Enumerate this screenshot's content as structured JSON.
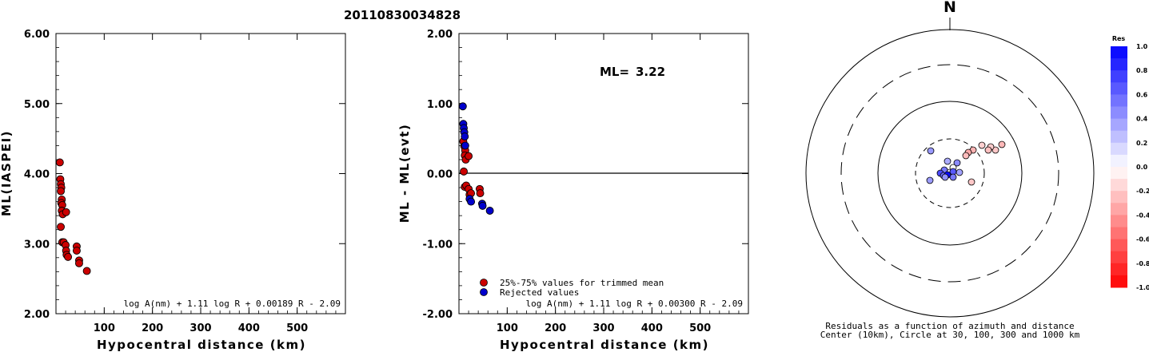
{
  "event_id": "20110830034828",
  "chart_data": [
    {
      "type": "scatter",
      "ylabel": "ML(IASPEI)",
      "xlabel": "Hypocentral distance (km)",
      "xlim": [
        0,
        600
      ],
      "ylim": [
        2.0,
        6.0
      ],
      "xticks": [
        "100",
        "200",
        "300",
        "400",
        "500"
      ],
      "yticks": [
        "2.00",
        "3.00",
        "4.00",
        "5.00",
        "6.00"
      ],
      "formula": "log A(nm) + 1.11 log R + 0.00189 R - 2.09",
      "points": [
        {
          "x": 8,
          "y": 4.16
        },
        {
          "x": 9,
          "y": 3.92
        },
        {
          "x": 10,
          "y": 3.85
        },
        {
          "x": 11,
          "y": 3.8
        },
        {
          "x": 10,
          "y": 3.75
        },
        {
          "x": 12,
          "y": 3.63
        },
        {
          "x": 11,
          "y": 3.58
        },
        {
          "x": 13,
          "y": 3.55
        },
        {
          "x": 12,
          "y": 3.47
        },
        {
          "x": 14,
          "y": 3.42
        },
        {
          "x": 21,
          "y": 3.45
        },
        {
          "x": 10,
          "y": 3.24
        },
        {
          "x": 13,
          "y": 3.02
        },
        {
          "x": 16,
          "y": 3.02
        },
        {
          "x": 20,
          "y": 2.98
        },
        {
          "x": 21,
          "y": 2.9
        },
        {
          "x": 22,
          "y": 2.84
        },
        {
          "x": 25,
          "y": 2.81
        },
        {
          "x": 43,
          "y": 2.96
        },
        {
          "x": 43,
          "y": 2.9
        },
        {
          "x": 48,
          "y": 2.76
        },
        {
          "x": 48,
          "y": 2.72
        },
        {
          "x": 64,
          "y": 2.61
        }
      ]
    },
    {
      "type": "scatter",
      "ylabel": "ML - ML(evt)",
      "xlabel": "Hypocentral distance (km)",
      "xlim": [
        0,
        600
      ],
      "ylim": [
        -2.0,
        2.0
      ],
      "xticks": [
        "100",
        "200",
        "300",
        "400",
        "500"
      ],
      "yticks": [
        "-2.00",
        "-1.00",
        "0.00",
        "1.00",
        "2.00"
      ],
      "ml_label": "ML=",
      "ml_value": "3.22",
      "legend": [
        "25%-75% values for trimmed mean",
        "Rejected values"
      ],
      "formula": "log A(nm) + 1.11 log R + 0.00300 R - 2.09",
      "series": [
        {
          "color": "#cc0000",
          "points": [
            {
              "x": 9,
              "y": 0.46
            },
            {
              "x": 11,
              "y": 0.39
            },
            {
              "x": 13,
              "y": 0.33
            },
            {
              "x": 12,
              "y": 0.26
            },
            {
              "x": 14,
              "y": 0.2
            },
            {
              "x": 20,
              "y": 0.25
            },
            {
              "x": 10,
              "y": 0.03
            },
            {
              "x": 12,
              "y": -0.19
            },
            {
              "x": 15,
              "y": -0.17
            },
            {
              "x": 20,
              "y": -0.22
            },
            {
              "x": 22,
              "y": -0.3
            },
            {
              "x": 25,
              "y": -0.28
            },
            {
              "x": 43,
              "y": -0.22
            },
            {
              "x": 44,
              "y": -0.28
            }
          ]
        },
        {
          "color": "#0000cc",
          "points": [
            {
              "x": 8,
              "y": 0.96
            },
            {
              "x": 9,
              "y": 0.71
            },
            {
              "x": 10,
              "y": 0.65
            },
            {
              "x": 11,
              "y": 0.59
            },
            {
              "x": 12,
              "y": 0.53
            },
            {
              "x": 13,
              "y": 0.4
            },
            {
              "x": 22,
              "y": -0.36
            },
            {
              "x": 25,
              "y": -0.4
            },
            {
              "x": 48,
              "y": -0.43
            },
            {
              "x": 49,
              "y": -0.46
            },
            {
              "x": 64,
              "y": -0.53
            }
          ]
        }
      ]
    }
  ],
  "polar": {
    "north": "N",
    "caption1": "Residuals as a function of azimuth and distance",
    "caption2": "Center (10km), Circle at 30, 100, 300 and 1000 km",
    "points": [
      {
        "dx": 65,
        "dy": -36,
        "res": -0.28
      },
      {
        "dx": 57,
        "dy": -29,
        "res": -0.22
      },
      {
        "dx": 51,
        "dy": -33,
        "res": -0.2
      },
      {
        "dx": 48,
        "dy": -29,
        "res": -0.25
      },
      {
        "dx": 40,
        "dy": -35,
        "res": -0.19
      },
      {
        "dx": 29,
        "dy": -29,
        "res": -0.3
      },
      {
        "dx": 23,
        "dy": -26,
        "res": -0.33
      },
      {
        "dx": 20,
        "dy": -22,
        "res": -0.26
      },
      {
        "dx": -24,
        "dy": -28,
        "res": 0.4
      },
      {
        "dx": -3,
        "dy": -15,
        "res": 0.33
      },
      {
        "dx": 9,
        "dy": -13,
        "res": 0.46
      },
      {
        "dx": 4,
        "dy": -7,
        "res": 0.0
      },
      {
        "dx": -7,
        "dy": -4,
        "res": 0.53
      },
      {
        "dx": 0,
        "dy": -1,
        "res": 0.04
      },
      {
        "dx": 4,
        "dy": -2,
        "res": 0.65
      },
      {
        "dx": 12,
        "dy": -1,
        "res": 0.36
      },
      {
        "dx": -12,
        "dy": 0,
        "res": 0.71
      },
      {
        "dx": -8,
        "dy": 3,
        "res": 0.59
      },
      {
        "dx": -3,
        "dy": 2,
        "res": 0.96
      },
      {
        "dx": -25,
        "dy": 9,
        "res": 0.39
      },
      {
        "dx": -6,
        "dy": 5,
        "res": 0.43
      },
      {
        "dx": 4,
        "dy": 5,
        "res": 0.53
      },
      {
        "dx": 27,
        "dy": 11,
        "res": -0.22
      }
    ]
  },
  "colorbar": {
    "title": "Res",
    "labels": [
      "1.0",
      "0.8",
      "0.6",
      "0.4",
      "0.2",
      "0.0",
      "-0.2",
      "-0.4",
      "-0.6",
      "-0.8",
      "-1.0"
    ],
    "top_color": "#0000ff",
    "bottom_color": "#ff0000"
  }
}
